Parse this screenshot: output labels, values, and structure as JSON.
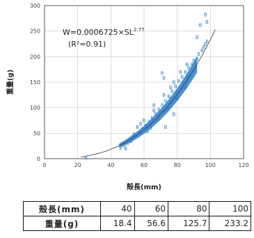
{
  "chart_data": {
    "type": "scatter",
    "xlabel": "殻長(mm)",
    "ylabel": "重量(g)",
    "xlim": [
      0,
      120
    ],
    "ylim": [
      0,
      300
    ],
    "x_ticks": [
      0,
      20,
      40,
      60,
      80,
      100,
      120
    ],
    "y_ticks": [
      0,
      50,
      100,
      150,
      200,
      250,
      300
    ],
    "grid": true,
    "marker": "B",
    "fit": {
      "a": 0.0006725,
      "b": 2.77,
      "r2": 0.91
    },
    "equation_text": "W=0.0006725×SL",
    "equation_exponent": "2.77",
    "r2_text": "(R²=0.91)",
    "points": [
      {
        "x": 25,
        "y": 2
      },
      {
        "x": 46,
        "y": 21
      },
      {
        "x": 48,
        "y": 26
      },
      {
        "x": 50,
        "y": 30
      },
      {
        "x": 52,
        "y": 34
      },
      {
        "x": 53,
        "y": 42
      },
      {
        "x": 55,
        "y": 45
      },
      {
        "x": 57,
        "y": 52
      },
      {
        "x": 59,
        "y": 58
      },
      {
        "x": 61,
        "y": 65
      },
      {
        "x": 63,
        "y": 72
      },
      {
        "x": 65,
        "y": 80
      },
      {
        "x": 67,
        "y": 88
      },
      {
        "x": 69,
        "y": 96
      },
      {
        "x": 71,
        "y": 105
      },
      {
        "x": 73,
        "y": 113
      },
      {
        "x": 75,
        "y": 122
      },
      {
        "x": 77,
        "y": 132
      },
      {
        "x": 79,
        "y": 142
      },
      {
        "x": 81,
        "y": 152
      },
      {
        "x": 83,
        "y": 160
      },
      {
        "x": 85,
        "y": 170
      },
      {
        "x": 87,
        "y": 178
      },
      {
        "x": 89,
        "y": 185
      },
      {
        "x": 56,
        "y": 62
      },
      {
        "x": 60,
        "y": 75
      },
      {
        "x": 64,
        "y": 60
      },
      {
        "x": 66,
        "y": 95
      },
      {
        "x": 70,
        "y": 90
      },
      {
        "x": 72,
        "y": 125
      },
      {
        "x": 76,
        "y": 110
      },
      {
        "x": 78,
        "y": 150
      },
      {
        "x": 80,
        "y": 130
      },
      {
        "x": 82,
        "y": 170
      },
      {
        "x": 84,
        "y": 148
      },
      {
        "x": 86,
        "y": 185
      },
      {
        "x": 88,
        "y": 165
      },
      {
        "x": 90,
        "y": 192
      },
      {
        "x": 92,
        "y": 196
      },
      {
        "x": 93,
        "y": 205
      },
      {
        "x": 95,
        "y": 212
      },
      {
        "x": 96,
        "y": 218
      },
      {
        "x": 97,
        "y": 224
      },
      {
        "x": 98,
        "y": 230
      },
      {
        "x": 92,
        "y": 238
      },
      {
        "x": 94,
        "y": 262
      },
      {
        "x": 98,
        "y": 268
      },
      {
        "x": 97,
        "y": 282
      },
      {
        "x": 71,
        "y": 168
      },
      {
        "x": 78,
        "y": 87
      },
      {
        "x": 73,
        "y": 62
      },
      {
        "x": 66,
        "y": 105
      },
      {
        "x": 72,
        "y": 158
      },
      {
        "x": 85,
        "y": 140
      },
      {
        "x": 58,
        "y": 68
      },
      {
        "x": 49,
        "y": 20
      },
      {
        "x": 51,
        "y": 36
      },
      {
        "x": 54,
        "y": 48
      },
      {
        "x": 62,
        "y": 54
      },
      {
        "x": 68,
        "y": 78
      },
      {
        "x": 74,
        "y": 100
      },
      {
        "x": 80,
        "y": 118
      },
      {
        "x": 76,
        "y": 140
      },
      {
        "x": 86,
        "y": 160
      }
    ]
  },
  "table": {
    "rows": [
      {
        "header": "殻長(mm)",
        "values": [
          "40",
          "60",
          "80",
          "100"
        ]
      },
      {
        "header": "重量(g)",
        "values": [
          "18.4",
          "56.6",
          "125.7",
          "233.2"
        ]
      }
    ]
  }
}
